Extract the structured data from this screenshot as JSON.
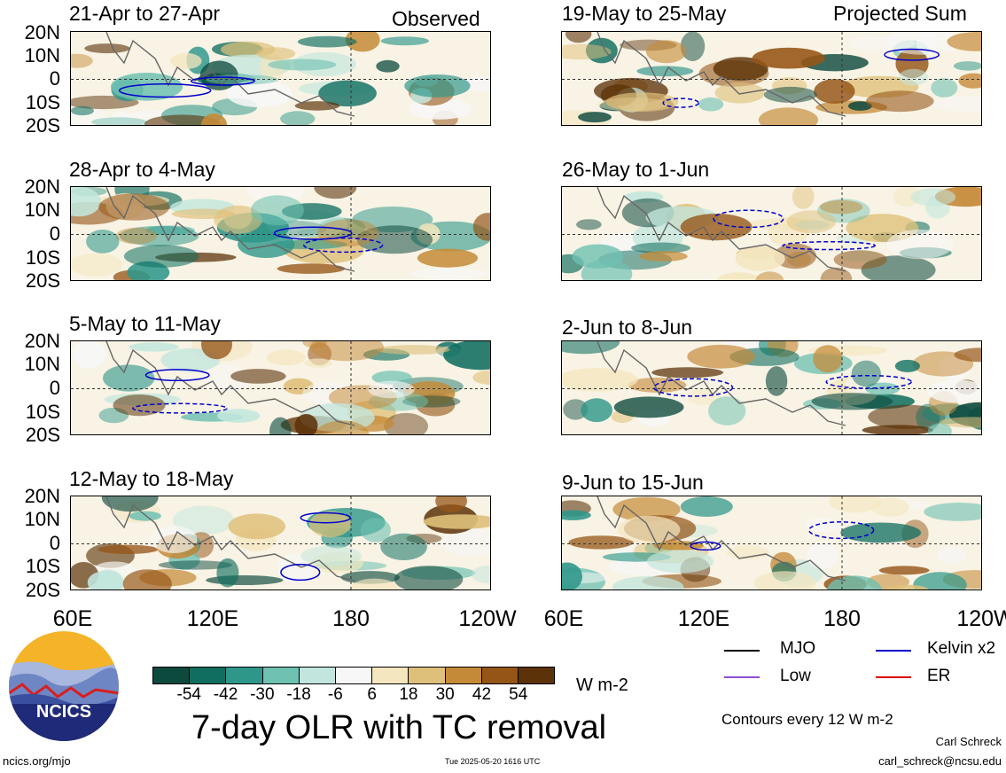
{
  "panels": {
    "left": [
      {
        "title": "21-Apr to 27-Apr",
        "corner": "Observed"
      },
      {
        "title": "28-Apr to 4-May",
        "corner": ""
      },
      {
        "title": "5-May to 11-May",
        "corner": ""
      },
      {
        "title": "12-May to 18-May",
        "corner": ""
      }
    ],
    "right": [
      {
        "title": "19-May to 25-May",
        "corner": "Projected Sum"
      },
      {
        "title": "26-May to 1-Jun",
        "corner": ""
      },
      {
        "title": "2-Jun to 8-Jun",
        "corner": ""
      },
      {
        "title": "9-Jun to 15-Jun",
        "corner": ""
      }
    ]
  },
  "lat_labels": [
    "20N",
    "10N",
    "0",
    "10S",
    "20S"
  ],
  "lon_labels": [
    "60E",
    "120E",
    "180",
    "120W"
  ],
  "colorbar": {
    "colors": [
      "#0d4a3e",
      "#0f6e60",
      "#2e978a",
      "#6fc1b2",
      "#c2e6dd",
      "#f7f7f7",
      "#f4e6bf",
      "#dfc07a",
      "#c58a38",
      "#955517",
      "#5c3208"
    ],
    "labels": [
      "-54",
      "-42",
      "-30",
      "-18",
      "-6",
      "6",
      "18",
      "30",
      "42",
      "54"
    ],
    "unit": "W m-2"
  },
  "main_title": "7-day OLR with TC removal",
  "legend": {
    "items": [
      {
        "label": "MJO",
        "color": "#000000"
      },
      {
        "label": "Kelvin x2",
        "color": "#0000cc"
      },
      {
        "label": "Low",
        "color": "#8a4fd0"
      },
      {
        "label": "ER",
        "color": "#dd0000"
      }
    ],
    "contour_note": "Contours every 12 W m-2"
  },
  "logo_text": "NCICS",
  "footer": {
    "url": "ncics.org/mjo",
    "timestamp": "Tue 2025-05-20 1616 UTC",
    "author": "Carl Schreck",
    "email": "carl_schreck@ncsu.edu"
  }
}
